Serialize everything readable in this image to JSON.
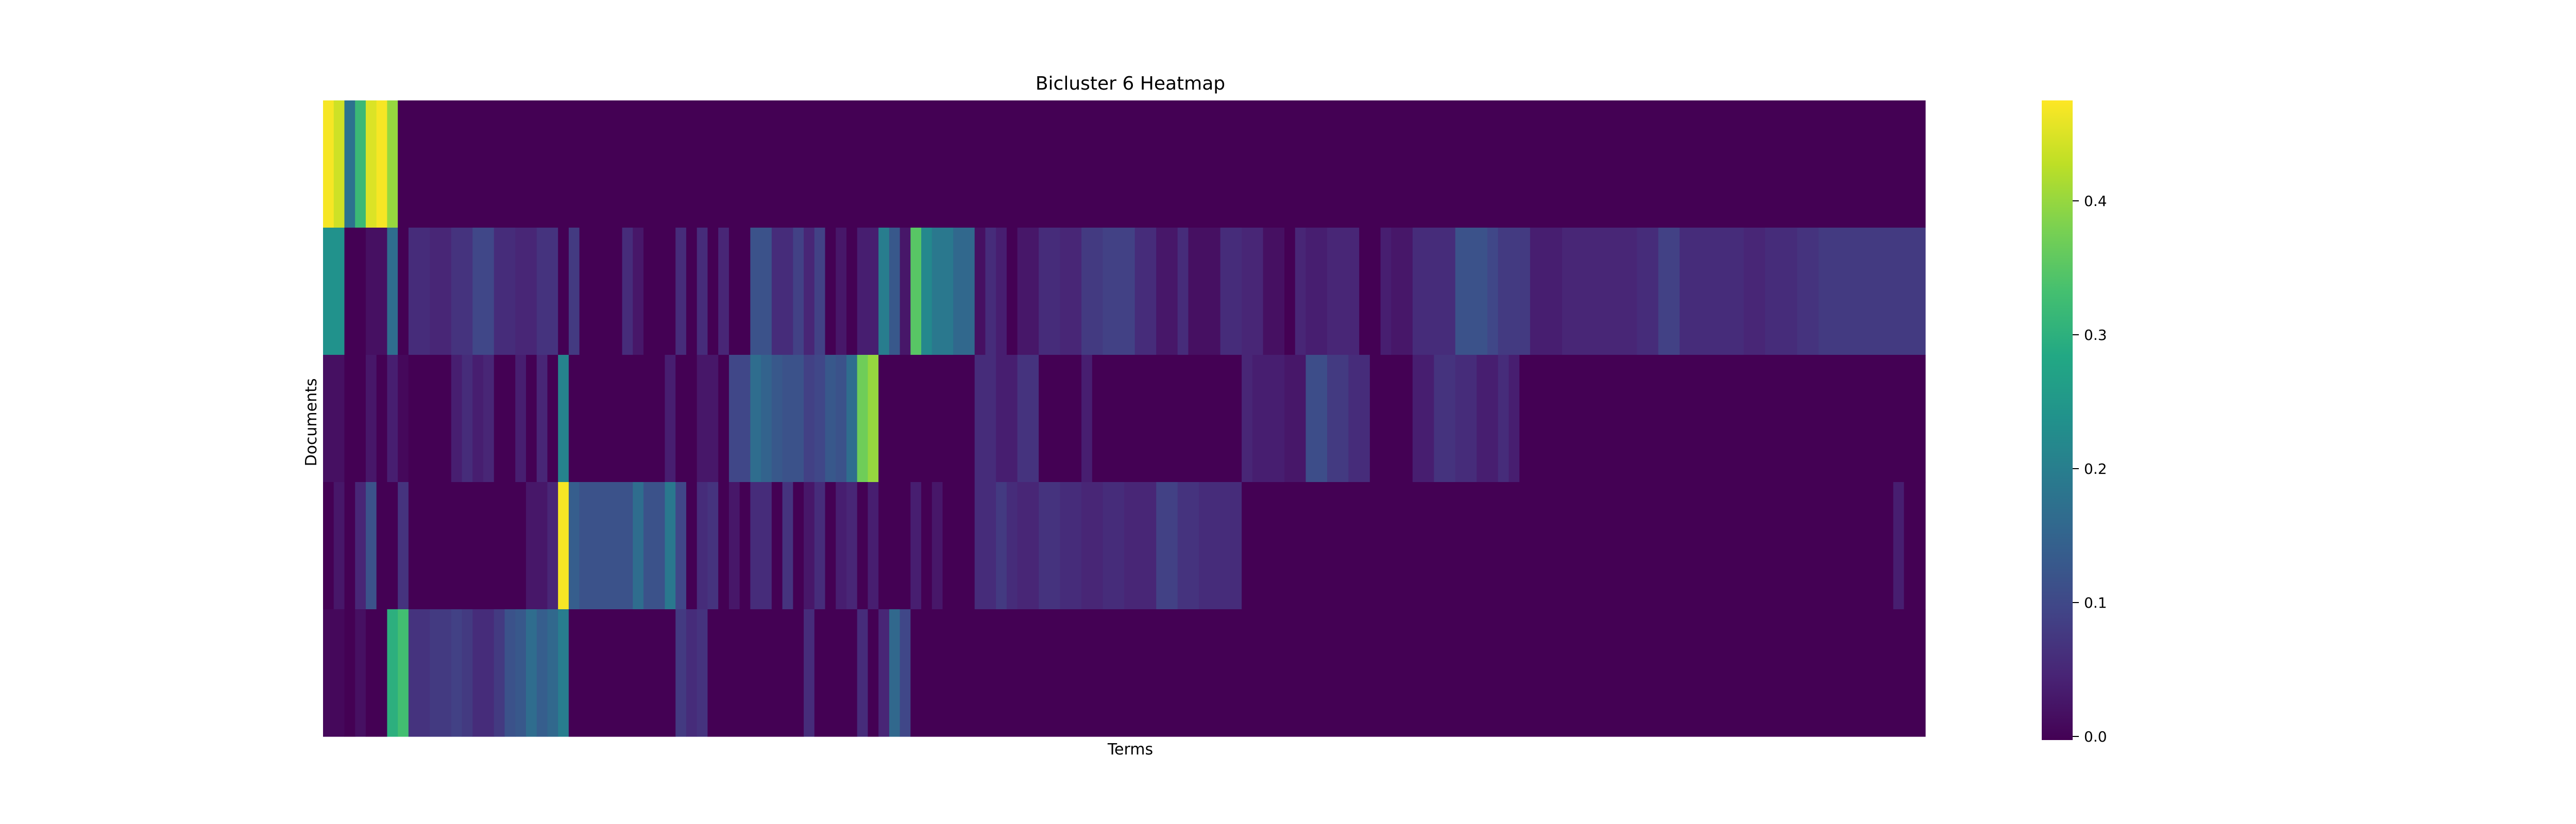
{
  "chart_data": {
    "type": "heatmap",
    "title": "Bicluster 6 Heatmap",
    "xlabel": "Terms",
    "ylabel": "Documents",
    "n_rows": 5,
    "n_cols": 150,
    "colormap": "viridis",
    "color_range": [
      0,
      0.475
    ],
    "colorbar_ticks": [
      {
        "value": 0.0,
        "label": "0.0"
      },
      {
        "value": 0.1,
        "label": "0.1"
      },
      {
        "value": 0.2,
        "label": "0.2"
      },
      {
        "value": 0.3,
        "label": "0.3"
      },
      {
        "value": 0.4,
        "label": "0.4"
      }
    ],
    "rows": [
      {
        "segments": [
          [
            0,
            1,
            0.47
          ],
          [
            1,
            2,
            0.44
          ],
          [
            2,
            3,
            0.18
          ],
          [
            3,
            4,
            0.32
          ],
          [
            4,
            5,
            0.45
          ],
          [
            5,
            6,
            0.47
          ],
          [
            6,
            7,
            0.4
          ],
          [
            7,
            150,
            0.0
          ]
        ]
      },
      {
        "segments": [
          [
            0,
            2,
            0.24
          ],
          [
            2,
            4,
            0.0
          ],
          [
            4,
            6,
            0.02
          ],
          [
            6,
            7,
            0.17
          ],
          [
            7,
            8,
            0.0
          ],
          [
            8,
            10,
            0.06
          ],
          [
            10,
            12,
            0.05
          ],
          [
            12,
            14,
            0.07
          ],
          [
            14,
            16,
            0.1
          ],
          [
            16,
            18,
            0.06
          ],
          [
            18,
            20,
            0.05
          ],
          [
            20,
            22,
            0.07
          ],
          [
            22,
            23,
            0.0
          ],
          [
            23,
            24,
            0.08
          ],
          [
            24,
            28,
            0.0
          ],
          [
            28,
            29,
            0.06
          ],
          [
            29,
            30,
            0.03
          ],
          [
            30,
            33,
            0.0
          ],
          [
            33,
            34,
            0.06
          ],
          [
            34,
            35,
            0.0
          ],
          [
            35,
            36,
            0.06
          ],
          [
            36,
            37,
            0.0
          ],
          [
            37,
            38,
            0.05
          ],
          [
            38,
            40,
            0.0
          ],
          [
            40,
            42,
            0.12
          ],
          [
            42,
            44,
            0.06
          ],
          [
            44,
            45,
            0.09
          ],
          [
            45,
            46,
            0.05
          ],
          [
            46,
            47,
            0.09
          ],
          [
            47,
            48,
            0.0
          ],
          [
            48,
            49,
            0.03
          ],
          [
            49,
            50,
            0.0
          ],
          [
            50,
            51,
            0.04
          ],
          [
            51,
            52,
            0.04
          ],
          [
            52,
            53,
            0.2
          ],
          [
            53,
            54,
            0.13
          ],
          [
            54,
            55,
            0.03
          ],
          [
            55,
            56,
            0.35
          ],
          [
            56,
            57,
            0.22
          ],
          [
            57,
            59,
            0.19
          ],
          [
            59,
            61,
            0.16
          ],
          [
            61,
            62,
            0.02
          ],
          [
            62,
            63,
            0.06
          ],
          [
            63,
            64,
            0.04
          ],
          [
            64,
            65,
            0.0
          ],
          [
            65,
            67,
            0.03
          ],
          [
            67,
            69,
            0.06
          ],
          [
            69,
            71,
            0.05
          ],
          [
            71,
            73,
            0.08
          ],
          [
            73,
            76,
            0.09
          ],
          [
            76,
            78,
            0.06
          ],
          [
            78,
            80,
            0.03
          ],
          [
            80,
            81,
            0.06
          ],
          [
            81,
            84,
            0.02
          ],
          [
            84,
            86,
            0.06
          ],
          [
            86,
            88,
            0.05
          ],
          [
            88,
            90,
            0.02
          ],
          [
            90,
            91,
            0.0
          ],
          [
            91,
            92,
            0.05
          ],
          [
            92,
            94,
            0.04
          ],
          [
            94,
            97,
            0.05
          ],
          [
            97,
            99,
            0.0
          ],
          [
            99,
            100,
            0.04
          ],
          [
            100,
            102,
            0.03
          ],
          [
            102,
            103,
            0.06
          ],
          [
            103,
            106,
            0.06
          ],
          [
            106,
            109,
            0.12
          ],
          [
            109,
            110,
            0.1
          ],
          [
            110,
            113,
            0.08
          ],
          [
            113,
            116,
            0.04
          ],
          [
            116,
            119,
            0.05
          ],
          [
            119,
            123,
            0.05
          ],
          [
            123,
            125,
            0.06
          ],
          [
            125,
            127,
            0.09
          ],
          [
            127,
            131,
            0.06
          ],
          [
            131,
            133,
            0.06
          ],
          [
            133,
            135,
            0.05
          ],
          [
            135,
            138,
            0.06
          ],
          [
            138,
            140,
            0.07
          ],
          [
            140,
            150,
            0.08
          ]
        ]
      },
      {
        "segments": [
          [
            0,
            2,
            0.02
          ],
          [
            2,
            4,
            0.0
          ],
          [
            4,
            5,
            0.03
          ],
          [
            5,
            6,
            0.0
          ],
          [
            6,
            7,
            0.04
          ],
          [
            7,
            8,
            0.01
          ],
          [
            8,
            10,
            0.0
          ],
          [
            10,
            12,
            0.0
          ],
          [
            12,
            13,
            0.04
          ],
          [
            13,
            14,
            0.06
          ],
          [
            14,
            15,
            0.04
          ],
          [
            15,
            16,
            0.05
          ],
          [
            16,
            17,
            0.0
          ],
          [
            17,
            18,
            0.0
          ],
          [
            18,
            19,
            0.04
          ],
          [
            19,
            20,
            0.0
          ],
          [
            20,
            21,
            0.05
          ],
          [
            21,
            22,
            0.0
          ],
          [
            22,
            23,
            0.21
          ],
          [
            23,
            32,
            0.0
          ],
          [
            32,
            33,
            0.04
          ],
          [
            33,
            34,
            0.0
          ],
          [
            34,
            35,
            0.0
          ],
          [
            35,
            37,
            0.03
          ],
          [
            37,
            38,
            0.0
          ],
          [
            38,
            40,
            0.1
          ],
          [
            40,
            41,
            0.17
          ],
          [
            41,
            42,
            0.15
          ],
          [
            42,
            43,
            0.13
          ],
          [
            43,
            45,
            0.12
          ],
          [
            45,
            46,
            0.09
          ],
          [
            46,
            47,
            0.1
          ],
          [
            47,
            48,
            0.13
          ],
          [
            48,
            49,
            0.12
          ],
          [
            49,
            50,
            0.17
          ],
          [
            50,
            51,
            0.37
          ],
          [
            51,
            52,
            0.4
          ],
          [
            52,
            53,
            0.0
          ],
          [
            53,
            61,
            0.0
          ],
          [
            61,
            63,
            0.06
          ],
          [
            63,
            64,
            0.04
          ],
          [
            64,
            65,
            0.04
          ],
          [
            65,
            67,
            0.07
          ],
          [
            67,
            71,
            0.0
          ],
          [
            71,
            72,
            0.04
          ],
          [
            72,
            76,
            0.0
          ],
          [
            76,
            86,
            0.0
          ],
          [
            86,
            87,
            0.05
          ],
          [
            87,
            90,
            0.04
          ],
          [
            90,
            92,
            0.03
          ],
          [
            92,
            94,
            0.11
          ],
          [
            94,
            96,
            0.08
          ],
          [
            96,
            98,
            0.06
          ],
          [
            98,
            102,
            0.0
          ],
          [
            102,
            104,
            0.04
          ],
          [
            104,
            106,
            0.07
          ],
          [
            106,
            108,
            0.06
          ],
          [
            108,
            110,
            0.04
          ],
          [
            110,
            111,
            0.06
          ],
          [
            111,
            112,
            0.04
          ],
          [
            112,
            150,
            0.0
          ]
        ]
      },
      {
        "segments": [
          [
            0,
            1,
            0.0
          ],
          [
            1,
            2,
            0.03
          ],
          [
            2,
            3,
            0.0
          ],
          [
            3,
            4,
            0.05
          ],
          [
            4,
            5,
            0.12
          ],
          [
            5,
            6,
            0.0
          ],
          [
            6,
            7,
            0.0
          ],
          [
            7,
            8,
            0.07
          ],
          [
            8,
            19,
            0.0
          ],
          [
            19,
            21,
            0.03
          ],
          [
            21,
            22,
            0.05
          ],
          [
            22,
            23,
            0.47
          ],
          [
            23,
            24,
            0.14
          ],
          [
            24,
            26,
            0.12
          ],
          [
            26,
            29,
            0.12
          ],
          [
            29,
            30,
            0.17
          ],
          [
            30,
            31,
            0.12
          ],
          [
            31,
            32,
            0.12
          ],
          [
            32,
            33,
            0.19
          ],
          [
            33,
            34,
            0.1
          ],
          [
            34,
            35,
            0.0
          ],
          [
            35,
            36,
            0.06
          ],
          [
            36,
            37,
            0.07
          ],
          [
            37,
            38,
            0.0
          ],
          [
            38,
            39,
            0.03
          ],
          [
            39,
            40,
            0.0
          ],
          [
            40,
            41,
            0.06
          ],
          [
            41,
            42,
            0.06
          ],
          [
            42,
            43,
            0.0
          ],
          [
            43,
            44,
            0.07
          ],
          [
            44,
            45,
            0.0
          ],
          [
            45,
            46,
            0.03
          ],
          [
            46,
            47,
            0.06
          ],
          [
            47,
            48,
            0.0
          ],
          [
            48,
            49,
            0.04
          ],
          [
            49,
            50,
            0.05
          ],
          [
            50,
            51,
            0.0
          ],
          [
            51,
            52,
            0.04
          ],
          [
            52,
            53,
            0.0
          ],
          [
            53,
            55,
            0.0
          ],
          [
            55,
            56,
            0.04
          ],
          [
            56,
            57,
            0.0
          ],
          [
            57,
            58,
            0.03
          ],
          [
            58,
            59,
            0.0
          ],
          [
            59,
            61,
            0.0
          ],
          [
            61,
            63,
            0.06
          ],
          [
            63,
            64,
            0.08
          ],
          [
            64,
            65,
            0.06
          ],
          [
            65,
            67,
            0.05
          ],
          [
            67,
            69,
            0.07
          ],
          [
            69,
            71,
            0.06
          ],
          [
            71,
            73,
            0.05
          ],
          [
            73,
            75,
            0.06
          ],
          [
            75,
            78,
            0.05
          ],
          [
            78,
            80,
            0.09
          ],
          [
            80,
            82,
            0.07
          ],
          [
            82,
            86,
            0.06
          ],
          [
            86,
            87,
            0.0
          ],
          [
            87,
            147,
            0.0
          ],
          [
            147,
            148,
            0.04
          ],
          [
            148,
            150,
            0.0
          ]
        ]
      },
      {
        "segments": [
          [
            0,
            2,
            0.01
          ],
          [
            2,
            3,
            0.0
          ],
          [
            3,
            4,
            0.02
          ],
          [
            4,
            5,
            0.0
          ],
          [
            5,
            6,
            0.0
          ],
          [
            6,
            7,
            0.3
          ],
          [
            7,
            8,
            0.33
          ],
          [
            8,
            10,
            0.07
          ],
          [
            10,
            12,
            0.08
          ],
          [
            12,
            13,
            0.09
          ],
          [
            13,
            14,
            0.08
          ],
          [
            14,
            16,
            0.06
          ],
          [
            16,
            17,
            0.08
          ],
          [
            17,
            18,
            0.12
          ],
          [
            18,
            19,
            0.13
          ],
          [
            19,
            20,
            0.17
          ],
          [
            20,
            21,
            0.14
          ],
          [
            21,
            22,
            0.16
          ],
          [
            22,
            23,
            0.2
          ],
          [
            23,
            33,
            0.0
          ],
          [
            33,
            34,
            0.08
          ],
          [
            34,
            35,
            0.06
          ],
          [
            35,
            36,
            0.07
          ],
          [
            36,
            38,
            0.0
          ],
          [
            38,
            45,
            0.0
          ],
          [
            45,
            46,
            0.06
          ],
          [
            46,
            50,
            0.0
          ],
          [
            50,
            51,
            0.06
          ],
          [
            51,
            52,
            0.0
          ],
          [
            52,
            53,
            0.05
          ],
          [
            53,
            54,
            0.16
          ],
          [
            54,
            55,
            0.1
          ],
          [
            55,
            150,
            0.0
          ]
        ]
      }
    ]
  }
}
